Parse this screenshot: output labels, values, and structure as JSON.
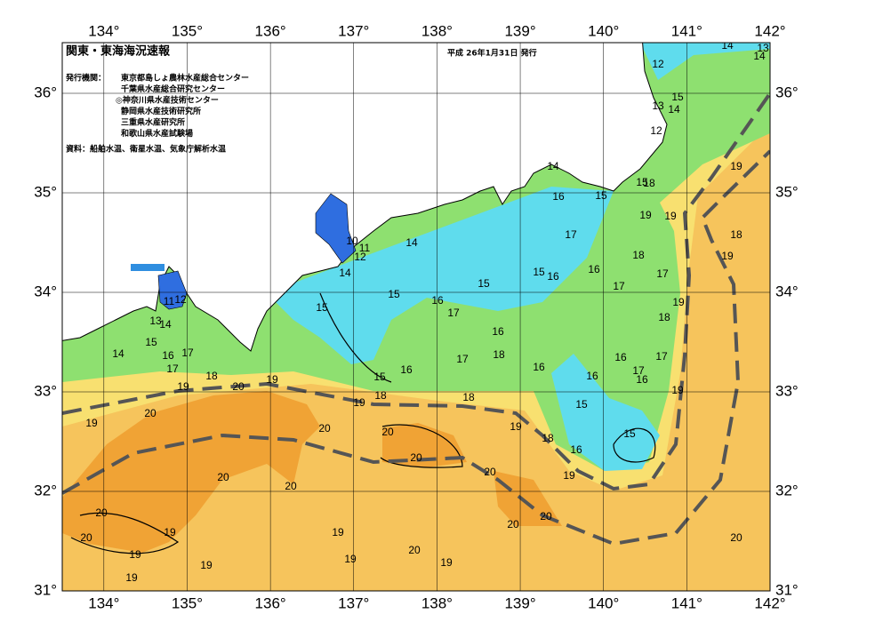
{
  "header": {
    "title": "関東・東海海況速報",
    "date": "平成 26年1月31日 発行",
    "issuer_label": "発行機関：",
    "issuers": [
      "東京都島しょ農林水産総合センター",
      "千葉県水産総合研究センター",
      "◎神奈川県水産技術センター",
      "静岡県水産技術研究所",
      "三重県水産研究所",
      "和歌山県水産試験場"
    ],
    "source": "資料：船舶水温、衛星水温、気象庁解析水温"
  },
  "map": {
    "lon_ticks": [
      {
        "value": 134,
        "label": "134°"
      },
      {
        "value": 135,
        "label": "135°"
      },
      {
        "value": 136,
        "label": "136°"
      },
      {
        "value": 137,
        "label": "137°"
      },
      {
        "value": 138,
        "label": "138°"
      },
      {
        "value": 139,
        "label": "139°"
      },
      {
        "value": 140,
        "label": "140°"
      },
      {
        "value": 141,
        "label": "141°"
      },
      {
        "value": 142,
        "label": "142°"
      }
    ],
    "lat_ticks": [
      {
        "value": 31,
        "label": "31°"
      },
      {
        "value": 32,
        "label": "32°"
      },
      {
        "value": 33,
        "label": "33°"
      },
      {
        "value": 34,
        "label": "34°"
      },
      {
        "value": 35,
        "label": "35°"
      },
      {
        "value": 36,
        "label": "36°"
      }
    ],
    "contour_labels": [
      14,
      13,
      14,
      12,
      15,
      13,
      14,
      12,
      14,
      15,
      18,
      16,
      15,
      19,
      19,
      19,
      14,
      10,
      11,
      12,
      17,
      18,
      18,
      19,
      14,
      15,
      16,
      16,
      17,
      15,
      17,
      15,
      11,
      12,
      16,
      19,
      15,
      17,
      13,
      14,
      18,
      16,
      15,
      14,
      16,
      17,
      18,
      16,
      17,
      17,
      16,
      15,
      16,
      17,
      17,
      16,
      16,
      18,
      19,
      20,
      19,
      18,
      19,
      19,
      18,
      15,
      20,
      19,
      20,
      20,
      19,
      18,
      15,
      16,
      20,
      20,
      20,
      19,
      20,
      20,
      20,
      20,
      19,
      19,
      20,
      20,
      19,
      20,
      19,
      19,
      19,
      19,
      19
    ]
  }
}
